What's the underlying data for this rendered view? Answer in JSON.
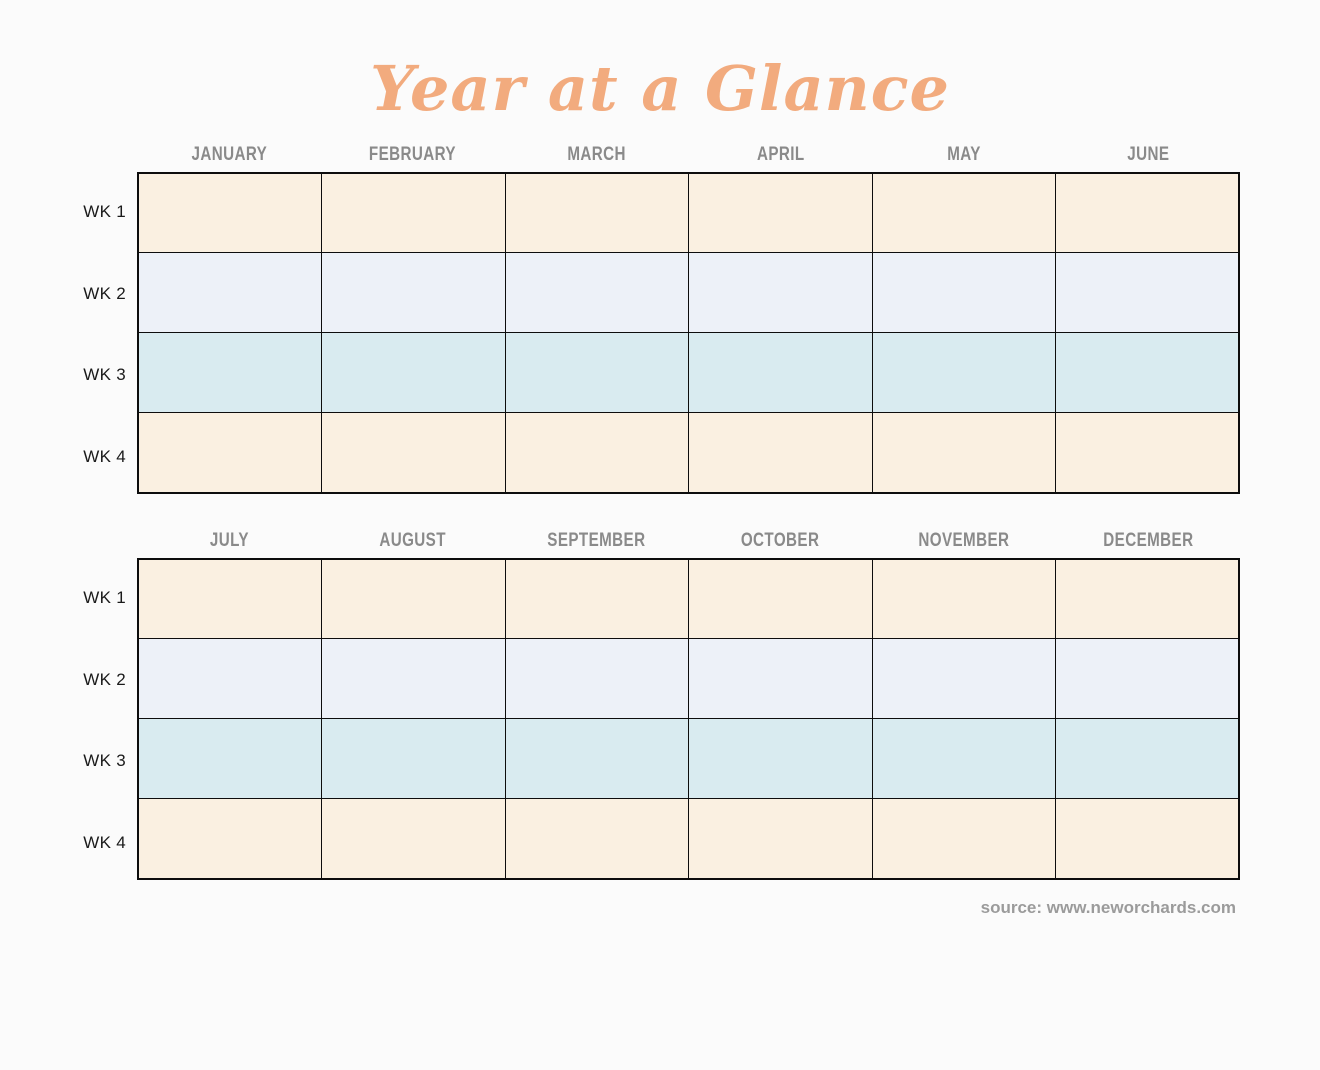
{
  "page": {
    "title": "Year at a Glance",
    "source": "source: www.neworchards.com"
  },
  "colors": {
    "title_text": "#f2ab7e",
    "month_header_text": "#8a8a8a",
    "week_label_text": "#1a1a1a",
    "source_text": "#9b9b9b",
    "row_week1": "#faf0e1",
    "row_week2": "#edf1f8",
    "row_week3": "#d9ebf0",
    "row_week4": "#faf0e1",
    "grid_border": "#0d0d0d",
    "background": "#fbfbfb"
  },
  "tables": [
    {
      "months": [
        "JANUARY",
        "FEBRUARY",
        "MARCH",
        "APRIL",
        "MAY",
        "JUNE"
      ],
      "weeks": [
        "WK 1",
        "WK 2",
        "WK 3",
        "WK 4"
      ]
    },
    {
      "months": [
        "JULY",
        "AUGUST",
        "SEPTEMBER",
        "OCTOBER",
        "NOVEMBER",
        "DECEMBER"
      ],
      "weeks": [
        "WK 1",
        "WK 2",
        "WK 3",
        "WK 4"
      ]
    }
  ]
}
